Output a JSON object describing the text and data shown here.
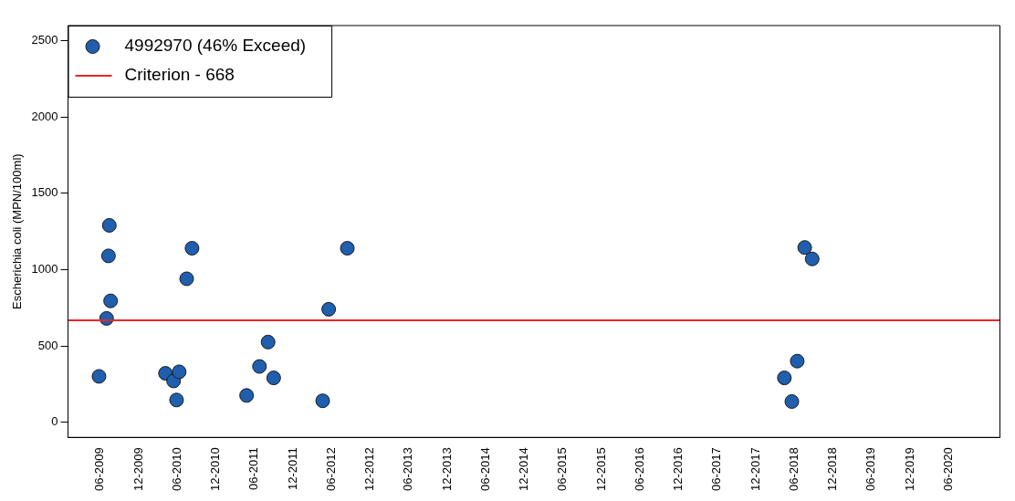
{
  "chart_data": {
    "type": "scatter",
    "ylabel": "Escherichia coli (MPN/100ml)",
    "xlim": [
      "2009-01-01",
      "2021-02-01"
    ],
    "ylim": [
      -100,
      2600
    ],
    "xticks": [
      {
        "value": "2009-06",
        "label": "06-2009"
      },
      {
        "value": "2009-12",
        "label": "12-2009"
      },
      {
        "value": "2010-06",
        "label": "06-2010"
      },
      {
        "value": "2010-12",
        "label": "12-2010"
      },
      {
        "value": "2011-06",
        "label": "06-2011"
      },
      {
        "value": "2011-12",
        "label": "12-2011"
      },
      {
        "value": "2012-06",
        "label": "06-2012"
      },
      {
        "value": "2012-12",
        "label": "12-2012"
      },
      {
        "value": "2013-06",
        "label": "06-2013"
      },
      {
        "value": "2013-12",
        "label": "12-2013"
      },
      {
        "value": "2014-06",
        "label": "06-2014"
      },
      {
        "value": "2014-12",
        "label": "12-2014"
      },
      {
        "value": "2015-06",
        "label": "06-2015"
      },
      {
        "value": "2015-12",
        "label": "12-2015"
      },
      {
        "value": "2016-06",
        "label": "06-2016"
      },
      {
        "value": "2016-12",
        "label": "12-2016"
      },
      {
        "value": "2017-06",
        "label": "06-2017"
      },
      {
        "value": "2017-12",
        "label": "12-2017"
      },
      {
        "value": "2018-06",
        "label": "06-2018"
      },
      {
        "value": "2018-12",
        "label": "12-2018"
      },
      {
        "value": "2019-06",
        "label": "06-2019"
      },
      {
        "value": "2019-12",
        "label": "12-2019"
      },
      {
        "value": "2020-06",
        "label": "06-2020"
      }
    ],
    "yticks": [
      0,
      500,
      1000,
      1500,
      2000,
      2500
    ],
    "series": [
      {
        "name": "4992970 (46% Exceed)",
        "color": "#1f5fae",
        "x": [
          "2009-05-26",
          "2009-07-01",
          "2009-07-20",
          "2009-07-10",
          "2009-07-14",
          "2010-04-06",
          "2010-05-14",
          "2010-06-10",
          "2010-05-28",
          "2010-07-15",
          "2010-08-10",
          "2011-04-25",
          "2011-06-25",
          "2011-08-05",
          "2011-09-01",
          "2012-04-20",
          "2012-05-18",
          "2012-08-15",
          "2018-04-15",
          "2018-06-15",
          "2018-05-20",
          "2018-07-20",
          "2018-08-25"
        ],
        "values": [
          300,
          680,
          795,
          1090,
          1290,
          320,
          270,
          330,
          145,
          940,
          1140,
          175,
          365,
          525,
          290,
          140,
          740,
          1140,
          290,
          400,
          135,
          1145,
          1070
        ]
      }
    ],
    "ref_lines": [
      {
        "axis": "y",
        "value": 668,
        "label": "Criterion - 668",
        "color": "#e8262b",
        "line_style": "solid"
      }
    ],
    "marker": "circle",
    "legend": "top left",
    "grid": false
  }
}
